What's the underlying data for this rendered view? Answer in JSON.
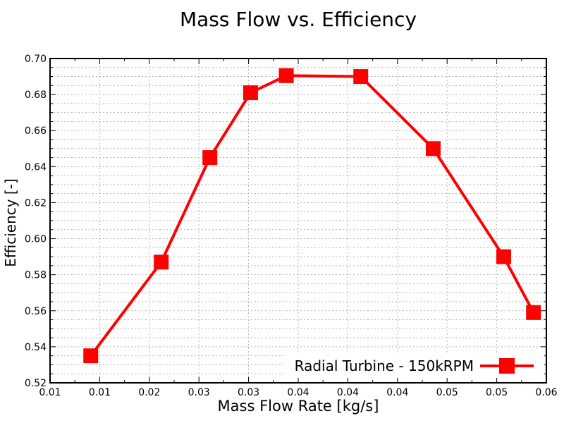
{
  "chart_data": {
    "type": "line",
    "title": "Mass Flow vs. Efficiency",
    "xlabel": "Mass Flow Rate [kg/s]",
    "ylabel": "Efficiency [-]",
    "series": [
      {
        "name": "Radial Turbine - 150kRPM",
        "x": [
          0.0141,
          0.0212,
          0.0261,
          0.0302,
          0.0338,
          0.0413,
          0.0486,
          0.0557,
          0.0587
        ],
        "y": [
          0.535,
          0.587,
          0.645,
          0.681,
          0.6905,
          0.69,
          0.65,
          0.59,
          0.559
        ],
        "color": "#ff0000",
        "marker": "filled-square",
        "marker_size": 21,
        "line_width": 4
      }
    ],
    "xlim": [
      0.01,
      0.06
    ],
    "ylim": [
      0.52,
      0.7
    ],
    "x_tick_values": [
      0.01,
      0.015,
      0.02,
      0.025,
      0.03,
      0.035,
      0.04,
      0.045,
      0.05,
      0.055,
      0.06
    ],
    "x_tick_labels": [
      "0.01",
      "0.01",
      "0.02",
      "0.03",
      "0.03",
      "0.04",
      "0.04",
      "0.04",
      "0.05",
      "0.05",
      "0.06"
    ],
    "y_tick_values": [
      0.52,
      0.54,
      0.56,
      0.58,
      0.6,
      0.62,
      0.64,
      0.66,
      0.68,
      0.7
    ],
    "y_tick_labels": [
      "0.52",
      "0.54",
      "0.56",
      "0.58",
      "0.60",
      "0.62",
      "0.64",
      "0.66",
      "0.68",
      "0.70"
    ],
    "x_minor_step": 0.0025,
    "y_minor_step": 0.005,
    "grid": {
      "x_step": 0.005,
      "y_step": 0.005,
      "style": "dashed",
      "on": true
    },
    "legend": {
      "label": "Radial Turbine - 150kRPM",
      "position": "bottom-right"
    },
    "colors": {
      "series": "#ff0000",
      "grid": "#b3b3b3",
      "axis": "#000000",
      "text": "#000000",
      "background": "#ffffff"
    }
  }
}
